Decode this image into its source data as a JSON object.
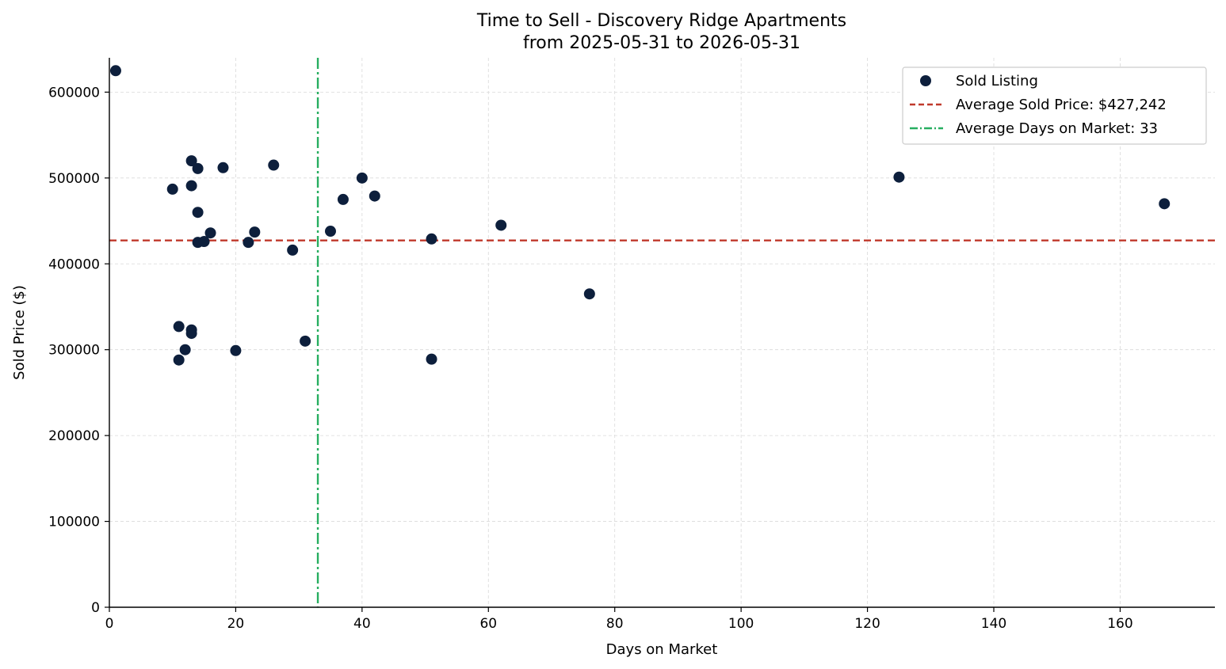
{
  "chart_data": {
    "type": "scatter",
    "title": "Time to Sell - Discovery Ridge Apartments",
    "subtitle": "from 2025-05-31 to 2026-05-31",
    "xlabel": "Days on Market",
    "ylabel": "Sold Price ($)",
    "xlim": [
      0,
      175
    ],
    "ylim": [
      0,
      640000
    ],
    "xticks": [
      0,
      20,
      40,
      60,
      80,
      100,
      120,
      140,
      160
    ],
    "yticks": [
      0,
      100000,
      200000,
      300000,
      400000,
      500000,
      600000
    ],
    "grid": true,
    "legend_position": "top-right",
    "colors": {
      "points": "#0d1f3c",
      "avg_price_line": "#c0392b",
      "avg_days_line": "#27ae60"
    },
    "series": [
      {
        "name": "Sold Listing",
        "points": [
          [
            1,
            625000
          ],
          [
            10,
            487000
          ],
          [
            11,
            327000
          ],
          [
            11,
            288000
          ],
          [
            12,
            300000
          ],
          [
            13,
            520000
          ],
          [
            13,
            491000
          ],
          [
            13,
            323000
          ],
          [
            13,
            319000
          ],
          [
            14,
            511000
          ],
          [
            14,
            460000
          ],
          [
            14,
            425000
          ],
          [
            15,
            426000
          ],
          [
            16,
            436000
          ],
          [
            18,
            512000
          ],
          [
            20,
            299000
          ],
          [
            22,
            425000
          ],
          [
            23,
            437000
          ],
          [
            26,
            515000
          ],
          [
            29,
            416000
          ],
          [
            31,
            310000
          ],
          [
            35,
            438000
          ],
          [
            37,
            475000
          ],
          [
            40,
            500000
          ],
          [
            42,
            479000
          ],
          [
            51,
            429000
          ],
          [
            51,
            289000
          ],
          [
            62,
            445000
          ],
          [
            76,
            365000
          ],
          [
            125,
            501000
          ],
          [
            167,
            470000
          ]
        ]
      }
    ],
    "reference_lines": {
      "avg_price": {
        "label": "Average Sold Price: $427,242",
        "value": 427242
      },
      "avg_days": {
        "label": "Average Days on Market: 33",
        "value": 33
      }
    }
  }
}
